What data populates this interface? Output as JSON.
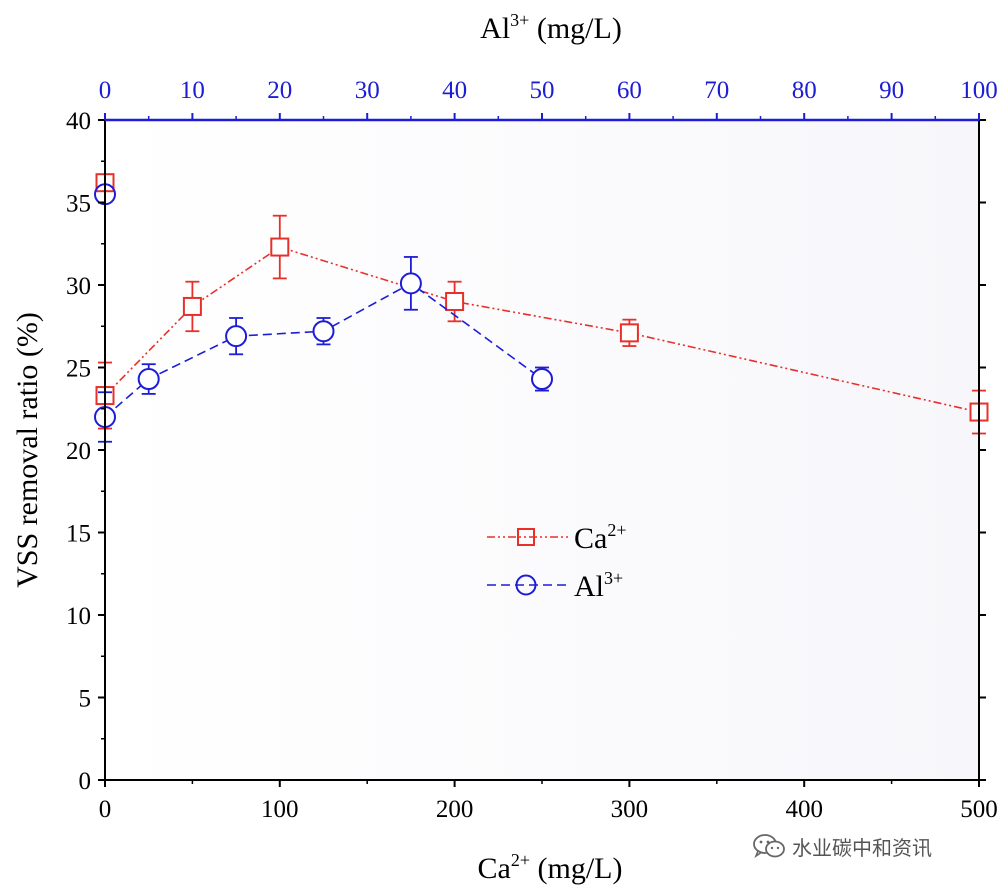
{
  "chart_data": {
    "type": "line",
    "ylabel": "VSS removal ratio (%)",
    "x_bottom": {
      "label_base": "Ca",
      "label_sup": "2+",
      "label_unit": " (mg/L)",
      "range": [
        0,
        500
      ],
      "ticks": [
        0,
        100,
        200,
        300,
        400,
        500
      ]
    },
    "x_top": {
      "label_base": "Al",
      "label_sup": "3+",
      "label_unit": " (mg/L)",
      "ticks": [
        "0",
        "10",
        "20",
        "30",
        "40",
        "50",
        "60",
        "70",
        "80",
        "90",
        "100"
      ]
    },
    "y_axis": {
      "range": [
        0,
        40
      ],
      "ticks": [
        0,
        5,
        10,
        15,
        20,
        25,
        30,
        35,
        40
      ]
    },
    "series": [
      {
        "name": "Ca2+",
        "legend_base": "Ca",
        "legend_sup": "2+",
        "color": "#e8302a",
        "marker": "square",
        "line_style": "dash-dot-dot",
        "x": [
          0,
          50,
          100,
          200,
          300,
          500
        ],
        "y": [
          23.3,
          28.7,
          32.3,
          29.0,
          27.1,
          22.3
        ],
        "err": [
          2.0,
          1.5,
          1.9,
          1.2,
          0.8,
          1.3
        ]
      },
      {
        "name": "Al3+",
        "legend_base": "Al",
        "legend_sup": "3+",
        "color": "#1d1dd6",
        "marker": "circle",
        "line_style": "dash",
        "x": [
          0,
          5,
          15,
          25,
          35,
          50
        ],
        "y": [
          22.0,
          24.3,
          26.9,
          27.2,
          30.1,
          24.3
        ],
        "err": [
          1.5,
          0.9,
          1.1,
          0.8,
          1.6,
          0.7
        ]
      }
    ],
    "extra_points": [
      {
        "series": "Ca2+",
        "x": 0,
        "y": 36.2
      },
      {
        "series": "Al3+",
        "x": 0,
        "y": 35.5
      }
    ],
    "legend_position": "center"
  },
  "watermark": {
    "text": "水业碳中和资讯",
    "icon": "wechat-icon"
  }
}
